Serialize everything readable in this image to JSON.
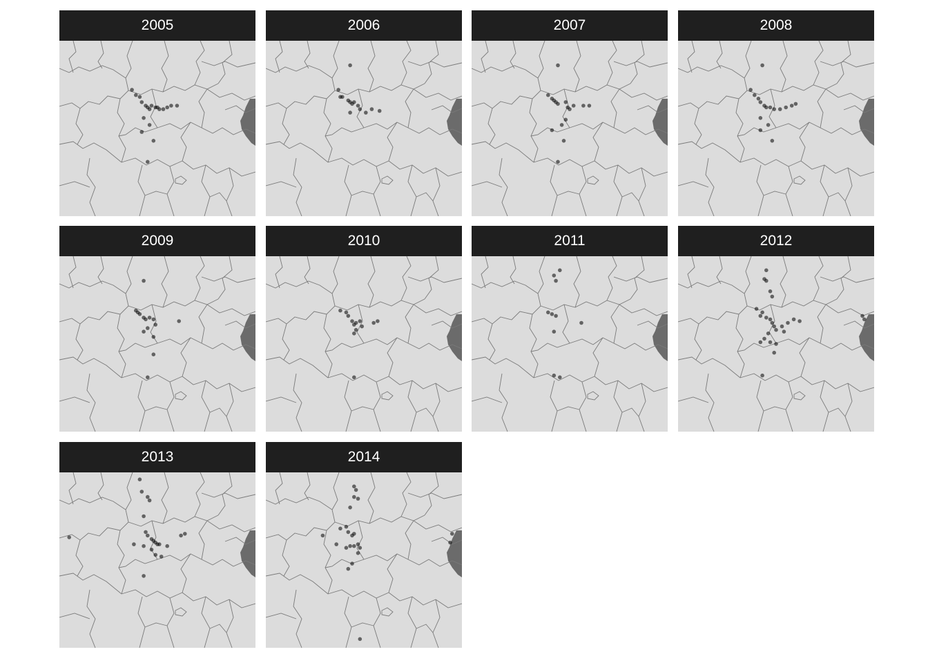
{
  "figure": {
    "type": "faceted-point-map",
    "colors": {
      "strip_background": "#1f1f1f",
      "strip_text": "#ffffff",
      "land_fill": "#dcdcdc",
      "boundary_stroke": "#7a7a7a",
      "water_fill": "#6b6b6b",
      "point_fill": "#000000"
    },
    "point_opacity": 0.55
  },
  "panels": [
    {
      "year": "2005",
      "points": [
        [
          0.37,
          0.28
        ],
        [
          0.39,
          0.31
        ],
        [
          0.41,
          0.32
        ],
        [
          0.42,
          0.35
        ],
        [
          0.44,
          0.37
        ],
        [
          0.45,
          0.38
        ],
        [
          0.46,
          0.39
        ],
        [
          0.47,
          0.37
        ],
        [
          0.49,
          0.38
        ],
        [
          0.5,
          0.38
        ],
        [
          0.51,
          0.39
        ],
        [
          0.53,
          0.39
        ],
        [
          0.55,
          0.38
        ],
        [
          0.57,
          0.37
        ],
        [
          0.6,
          0.37
        ],
        [
          0.43,
          0.44
        ],
        [
          0.46,
          0.48
        ],
        [
          0.42,
          0.52
        ],
        [
          0.48,
          0.57
        ],
        [
          0.45,
          0.69
        ]
      ]
    },
    {
      "year": "2006",
      "points": [
        [
          0.43,
          0.14
        ],
        [
          0.37,
          0.28
        ],
        [
          0.38,
          0.32
        ],
        [
          0.39,
          0.32
        ],
        [
          0.42,
          0.34
        ],
        [
          0.43,
          0.35
        ],
        [
          0.44,
          0.36
        ],
        [
          0.45,
          0.35
        ],
        [
          0.47,
          0.37
        ],
        [
          0.48,
          0.39
        ],
        [
          0.51,
          0.41
        ],
        [
          0.43,
          0.41
        ],
        [
          0.54,
          0.39
        ],
        [
          0.58,
          0.4
        ]
      ]
    },
    {
      "year": "2007",
      "points": [
        [
          0.44,
          0.14
        ],
        [
          0.39,
          0.31
        ],
        [
          0.41,
          0.33
        ],
        [
          0.42,
          0.34
        ],
        [
          0.43,
          0.35
        ],
        [
          0.44,
          0.36
        ],
        [
          0.48,
          0.35
        ],
        [
          0.49,
          0.38
        ],
        [
          0.5,
          0.39
        ],
        [
          0.52,
          0.37
        ],
        [
          0.57,
          0.37
        ],
        [
          0.6,
          0.37
        ],
        [
          0.48,
          0.45
        ],
        [
          0.46,
          0.48
        ],
        [
          0.41,
          0.51
        ],
        [
          0.47,
          0.57
        ],
        [
          0.44,
          0.69
        ]
      ]
    },
    {
      "year": "2008",
      "points": [
        [
          0.43,
          0.14
        ],
        [
          0.37,
          0.28
        ],
        [
          0.39,
          0.31
        ],
        [
          0.41,
          0.33
        ],
        [
          0.42,
          0.35
        ],
        [
          0.44,
          0.37
        ],
        [
          0.45,
          0.38
        ],
        [
          0.47,
          0.38
        ],
        [
          0.49,
          0.39
        ],
        [
          0.52,
          0.39
        ],
        [
          0.55,
          0.38
        ],
        [
          0.58,
          0.37
        ],
        [
          0.6,
          0.36
        ],
        [
          0.42,
          0.44
        ],
        [
          0.46,
          0.48
        ],
        [
          0.42,
          0.51
        ],
        [
          0.48,
          0.57
        ]
      ]
    },
    {
      "year": "2009",
      "points": [
        [
          0.43,
          0.14
        ],
        [
          0.39,
          0.31
        ],
        [
          0.4,
          0.32
        ],
        [
          0.41,
          0.33
        ],
        [
          0.43,
          0.35
        ],
        [
          0.44,
          0.36
        ],
        [
          0.46,
          0.35
        ],
        [
          0.48,
          0.36
        ],
        [
          0.49,
          0.39
        ],
        [
          0.45,
          0.41
        ],
        [
          0.43,
          0.43
        ],
        [
          0.48,
          0.46
        ],
        [
          0.61,
          0.37
        ],
        [
          0.48,
          0.56
        ],
        [
          0.45,
          0.69
        ]
      ]
    },
    {
      "year": "2010",
      "points": [
        [
          0.38,
          0.31
        ],
        [
          0.41,
          0.32
        ],
        [
          0.42,
          0.34
        ],
        [
          0.44,
          0.37
        ],
        [
          0.45,
          0.39
        ],
        [
          0.46,
          0.38
        ],
        [
          0.48,
          0.37
        ],
        [
          0.49,
          0.4
        ],
        [
          0.46,
          0.42
        ],
        [
          0.45,
          0.44
        ],
        [
          0.55,
          0.38
        ],
        [
          0.57,
          0.37
        ],
        [
          0.45,
          0.69
        ]
      ]
    },
    {
      "year": "2011",
      "points": [
        [
          0.45,
          0.08
        ],
        [
          0.42,
          0.11
        ],
        [
          0.43,
          0.14
        ],
        [
          0.39,
          0.32
        ],
        [
          0.41,
          0.33
        ],
        [
          0.43,
          0.34
        ],
        [
          0.56,
          0.38
        ],
        [
          0.42,
          0.43
        ],
        [
          0.42,
          0.68
        ],
        [
          0.45,
          0.69
        ]
      ]
    },
    {
      "year": "2012",
      "points": [
        [
          0.45,
          0.08
        ],
        [
          0.44,
          0.13
        ],
        [
          0.45,
          0.14
        ],
        [
          0.47,
          0.2
        ],
        [
          0.48,
          0.23
        ],
        [
          0.4,
          0.3
        ],
        [
          0.43,
          0.32
        ],
        [
          0.42,
          0.34
        ],
        [
          0.45,
          0.35
        ],
        [
          0.47,
          0.36
        ],
        [
          0.48,
          0.38
        ],
        [
          0.49,
          0.4
        ],
        [
          0.5,
          0.42
        ],
        [
          0.46,
          0.44
        ],
        [
          0.44,
          0.47
        ],
        [
          0.47,
          0.49
        ],
        [
          0.5,
          0.5
        ],
        [
          0.42,
          0.49
        ],
        [
          0.53,
          0.4
        ],
        [
          0.56,
          0.38
        ],
        [
          0.59,
          0.36
        ],
        [
          0.62,
          0.37
        ],
        [
          0.54,
          0.43
        ],
        [
          0.49,
          0.55
        ],
        [
          0.43,
          0.68
        ],
        [
          0.94,
          0.34
        ],
        [
          0.95,
          0.36
        ]
      ]
    },
    {
      "year": "2013",
      "points": [
        [
          0.41,
          0.04
        ],
        [
          0.42,
          0.11
        ],
        [
          0.45,
          0.14
        ],
        [
          0.46,
          0.16
        ],
        [
          0.43,
          0.25
        ],
        [
          0.44,
          0.34
        ],
        [
          0.45,
          0.36
        ],
        [
          0.47,
          0.38
        ],
        [
          0.48,
          0.39
        ],
        [
          0.49,
          0.4
        ],
        [
          0.5,
          0.41
        ],
        [
          0.51,
          0.41
        ],
        [
          0.43,
          0.42
        ],
        [
          0.47,
          0.44
        ],
        [
          0.55,
          0.42
        ],
        [
          0.49,
          0.47
        ],
        [
          0.38,
          0.41
        ],
        [
          0.52,
          0.48
        ],
        [
          0.64,
          0.35
        ],
        [
          0.62,
          0.36
        ],
        [
          0.43,
          0.59
        ],
        [
          0.05,
          0.37
        ]
      ]
    },
    {
      "year": "2014",
      "points": [
        [
          0.45,
          0.08
        ],
        [
          0.46,
          0.1
        ],
        [
          0.45,
          0.14
        ],
        [
          0.47,
          0.15
        ],
        [
          0.43,
          0.2
        ],
        [
          0.38,
          0.32
        ],
        [
          0.41,
          0.31
        ],
        [
          0.42,
          0.34
        ],
        [
          0.44,
          0.36
        ],
        [
          0.45,
          0.35
        ],
        [
          0.29,
          0.36
        ],
        [
          0.36,
          0.41
        ],
        [
          0.41,
          0.43
        ],
        [
          0.43,
          0.42
        ],
        [
          0.45,
          0.42
        ],
        [
          0.47,
          0.41
        ],
        [
          0.48,
          0.43
        ],
        [
          0.47,
          0.46
        ],
        [
          0.44,
          0.52
        ],
        [
          0.42,
          0.55
        ],
        [
          0.48,
          0.95
        ],
        [
          0.95,
          0.35
        ],
        [
          0.94,
          0.4
        ]
      ]
    }
  ]
}
